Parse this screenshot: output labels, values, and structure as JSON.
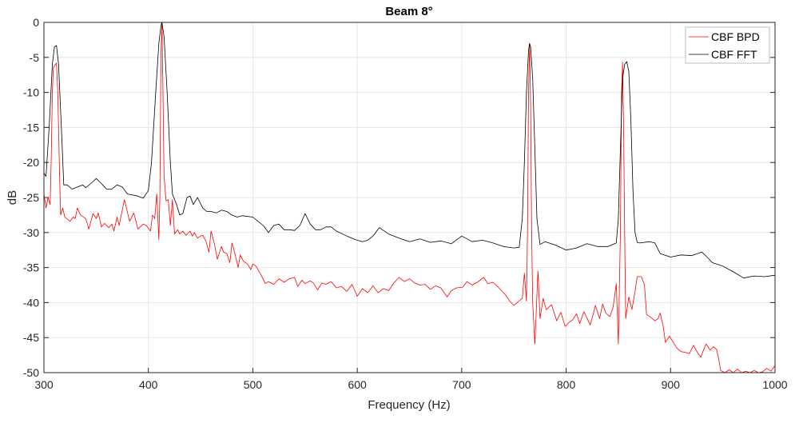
{
  "chart_data": {
    "type": "line",
    "title": "Beam 8°",
    "xlabel": "Frequency (Hz)",
    "ylabel": "dB",
    "xlim": [
      300,
      1000
    ],
    "ylim": [
      -50,
      0
    ],
    "xticks": [
      300,
      400,
      500,
      600,
      700,
      800,
      900,
      1000
    ],
    "yticks": [
      0,
      -5,
      -10,
      -15,
      -20,
      -25,
      -30,
      -35,
      -40,
      -45,
      -50
    ],
    "grid": true,
    "legend_position": "top-right",
    "series": [
      {
        "name": "CBF BPD",
        "color": "#ff0000",
        "x": [
          300,
          302,
          304,
          306,
          307,
          308,
          309,
          311,
          312,
          313,
          314,
          315,
          316,
          318,
          320,
          325,
          328,
          330,
          332,
          335,
          340,
          343,
          347,
          350,
          352,
          355,
          358,
          362,
          365,
          367,
          370,
          372,
          377,
          382,
          386,
          390,
          395,
          398,
          402,
          404,
          406,
          408,
          410,
          411,
          412,
          413,
          414,
          415,
          417,
          419,
          421,
          423,
          425,
          428,
          430,
          433,
          436,
          440,
          442,
          444,
          447,
          450,
          452,
          455,
          458,
          460,
          463,
          466,
          470,
          472,
          475,
          478,
          480,
          482,
          486,
          488,
          491,
          495,
          498,
          500,
          503,
          508,
          512,
          515,
          520,
          525,
          530,
          535,
          540,
          543,
          547,
          550,
          555,
          558,
          562,
          566,
          570,
          575,
          580,
          585,
          590,
          595,
          600,
          605,
          610,
          615,
          620,
          625,
          630,
          635,
          640,
          645,
          650,
          655,
          660,
          665,
          670,
          675,
          680,
          686,
          690,
          695,
          701,
          705,
          710,
          715,
          721,
          725,
          730,
          735,
          742,
          746,
          750,
          754,
          758,
          760,
          762,
          763,
          764,
          765,
          766,
          767,
          768,
          770,
          773,
          775,
          778,
          781,
          786,
          791,
          795,
          799,
          803,
          806,
          810,
          813,
          817,
          820,
          823,
          826,
          828,
          832,
          835,
          838,
          842,
          845,
          848,
          850,
          852,
          853,
          854,
          855,
          856,
          857,
          860,
          863,
          866,
          868,
          872,
          875,
          877,
          881,
          885,
          888,
          890,
          893,
          895,
          899,
          903,
          906,
          910,
          914,
          918,
          922,
          926,
          929,
          932,
          934,
          938,
          941,
          944,
          946,
          948,
          952,
          956,
          960,
          964,
          968,
          972,
          976,
          980,
          984,
          988,
          992,
          996,
          1000
        ],
        "y": [
          -24.5,
          -26.5,
          -25,
          -26,
          -19,
          -10,
          -6.5,
          -6,
          -5.8,
          -9,
          -15,
          -22,
          -27.5,
          -26.5,
          -27.8,
          -28.4,
          -27.8,
          -28,
          -26.5,
          -27.5,
          -28,
          -29.5,
          -27.3,
          -28,
          -27.2,
          -29.2,
          -28.7,
          -29.3,
          -28.8,
          -29.8,
          -27.8,
          -29,
          -25.3,
          -28.4,
          -27.2,
          -29.5,
          -28.8,
          -29,
          -29.8,
          -27.5,
          -28,
          -24.5,
          -31,
          -25,
          -5,
          0,
          -10,
          -22,
          -25.5,
          -25.3,
          -29,
          -25.3,
          -30.2,
          -29.6,
          -30.2,
          -29.8,
          -30.4,
          -29.8,
          -30.5,
          -30,
          -30.8,
          -30.5,
          -30.4,
          -31.2,
          -32.8,
          -29.8,
          -31.5,
          -33.8,
          -32,
          -32.8,
          -33,
          -34.3,
          -31.5,
          -32.5,
          -35,
          -33.2,
          -34.1,
          -34.5,
          -35.3,
          -34.5,
          -34.8,
          -36.1,
          -37.3,
          -37,
          -37.4,
          -36.6,
          -37.1,
          -36.6,
          -36.4,
          -37.7,
          -36.8,
          -37.3,
          -36.9,
          -37.2,
          -38.2,
          -37.2,
          -37.4,
          -37,
          -37.9,
          -37.7,
          -38.4,
          -37.4,
          -39.1,
          -38,
          -38.6,
          -37.6,
          -38.6,
          -38,
          -38.3,
          -37.2,
          -36.4,
          -37,
          -36.6,
          -37.2,
          -37.5,
          -37.4,
          -38.1,
          -37.6,
          -37.9,
          -39.2,
          -38.3,
          -37.9,
          -37.8,
          -37,
          -37.5,
          -37.1,
          -36.4,
          -37.3,
          -37.1,
          -37.8,
          -38.9,
          -39.8,
          -40.4,
          -39.9,
          -39.4,
          -35.8,
          -39.8,
          -30,
          -10,
          -3,
          -12,
          -30,
          -40,
          -45.9,
          -35.5,
          -42.3,
          -39.4,
          -41,
          -40.3,
          -42.6,
          -41.4,
          -43.4,
          -42.8,
          -42.5,
          -41.6,
          -43.0,
          -41.3,
          -42.2,
          -43.2,
          -41.6,
          -40.4,
          -42.3,
          -40.2,
          -41.5,
          -42,
          -40.6,
          -37.3,
          -45.9,
          -30,
          -10,
          -5.7,
          -15,
          -30,
          -42.3,
          -39.2,
          -41,
          -38.4,
          -36.3,
          -36.3,
          -37.5,
          -41.7,
          -42.1,
          -42.6,
          -42.3,
          -41.5,
          -43.4,
          -45.7,
          -44.8,
          -45.8,
          -46.5,
          -47,
          -47.1,
          -47.3,
          -46.1,
          -47.2,
          -47.8,
          -46.6,
          -45.9,
          -46.8,
          -46.3,
          -46.7,
          -48,
          -49.7,
          -50,
          -49.6,
          -50,
          -49.5,
          -50,
          -49.8,
          -50,
          -49.7,
          -50,
          -49.9,
          -49.4,
          -49.8,
          -49
        ]
      },
      {
        "name": "CBF FFT",
        "color": "#000000",
        "x": [
          300,
          302,
          305,
          308,
          310,
          312,
          314,
          317,
          319,
          322,
          327,
          332,
          337,
          340,
          345,
          350,
          355,
          360,
          365,
          370,
          375,
          380,
          390,
          395,
          400,
          403,
          407,
          410,
          412,
          413,
          415,
          418,
          421,
          423,
          427,
          430,
          433,
          437,
          440,
          443,
          447,
          452,
          456,
          460,
          465,
          470,
          475,
          480,
          485,
          490,
          500,
          510,
          515,
          520,
          525,
          530,
          535,
          540,
          545,
          550,
          555,
          560,
          565,
          570,
          575,
          580,
          590,
          598,
          605,
          610,
          615,
          621,
          630,
          640,
          650,
          660,
          670,
          680,
          690,
          700,
          705,
          710,
          720,
          730,
          740,
          750,
          755,
          758,
          760,
          762,
          764,
          765,
          766,
          768,
          770,
          772,
          775,
          780,
          790,
          800,
          810,
          820,
          830,
          840,
          848,
          850,
          852,
          854,
          856,
          858,
          860,
          862,
          864,
          866,
          868,
          870,
          880,
          885,
          890,
          900,
          910,
          920,
          930,
          935,
          940,
          950,
          960,
          970,
          980,
          990,
          1000
        ],
        "y": [
          -21.5,
          -22,
          -15,
          -6,
          -3.5,
          -3.3,
          -6,
          -16,
          -23.2,
          -23.2,
          -23.8,
          -23.5,
          -23.2,
          -23.6,
          -23,
          -22.3,
          -23,
          -23.8,
          -23.8,
          -23.2,
          -23.5,
          -24.5,
          -24.8,
          -25.1,
          -24,
          -20,
          -10,
          -3,
          -0.5,
          0,
          -2,
          -10,
          -20,
          -24.5,
          -26,
          -27.5,
          -27.3,
          -25,
          -24.8,
          -26,
          -25,
          -26.5,
          -27,
          -27,
          -27.2,
          -26.8,
          -27,
          -27.5,
          -27.8,
          -27.6,
          -27.8,
          -29,
          -30,
          -29,
          -28.8,
          -29.6,
          -29.6,
          -29.7,
          -29,
          -27.3,
          -28.8,
          -29.6,
          -29.6,
          -29.2,
          -29.2,
          -29.8,
          -30.5,
          -31,
          -31.3,
          -31.1,
          -30.5,
          -29.3,
          -30.2,
          -30.8,
          -31.3,
          -30.9,
          -31.4,
          -31.2,
          -31.6,
          -30.5,
          -30.9,
          -31.3,
          -31.1,
          -31.5,
          -32,
          -32.2,
          -32.1,
          -28,
          -20,
          -10,
          -4,
          -3,
          -3.5,
          -8,
          -18,
          -28,
          -31.7,
          -31.3,
          -31.8,
          -32.5,
          -32.2,
          -31.6,
          -32,
          -32,
          -31.5,
          -28,
          -18,
          -8,
          -6,
          -5.6,
          -7,
          -14,
          -24,
          -30,
          -31.4,
          -31.5,
          -31.3,
          -31.5,
          -33,
          -33.5,
          -33.2,
          -33.3,
          -32.8,
          -33.5,
          -34.3,
          -34.8,
          -35.6,
          -36.5,
          -36.2,
          -36.3,
          -36.1
        ]
      }
    ]
  }
}
